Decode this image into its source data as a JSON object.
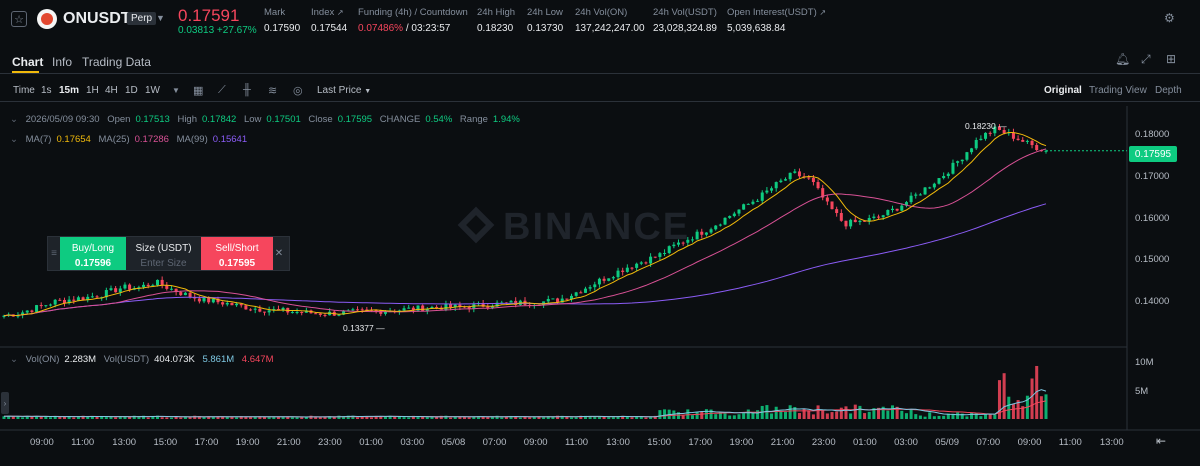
{
  "header": {
    "symbol": "ONUSDT",
    "contract_type": "Perp",
    "last_price": "0.17591",
    "change": "0.03813 +27.67%",
    "stats": [
      {
        "label": "Mark",
        "value": "0.17590",
        "color": ""
      },
      {
        "label": "Index",
        "value": "0.17544",
        "color": ""
      },
      {
        "label": "Funding (4h) / Countdown",
        "value": "0.07486%",
        "value2": "/ 03:23:57",
        "color": "red"
      },
      {
        "label": "24h High",
        "value": "0.18230",
        "color": ""
      },
      {
        "label": "24h Low",
        "value": "0.13730",
        "color": ""
      },
      {
        "label": "24h Vol(ON)",
        "value": "137,242,247.00",
        "color": ""
      },
      {
        "label": "24h Vol(USDT)",
        "value": "23,028,324.89",
        "color": ""
      },
      {
        "label": "Open Interest(USDT)",
        "value": "5,039,638.84",
        "color": ""
      }
    ]
  },
  "tabs": [
    {
      "label": "Chart",
      "active": true
    },
    {
      "label": "Info",
      "active": false
    },
    {
      "label": "Trading Data",
      "active": false
    }
  ],
  "toolbar": {
    "time_label": "Time",
    "intervals": [
      {
        "label": "1s",
        "active": false
      },
      {
        "label": "15m",
        "active": true
      },
      {
        "label": "1H",
        "active": false
      },
      {
        "label": "4H",
        "active": false
      },
      {
        "label": "1D",
        "active": false
      },
      {
        "label": "1W",
        "active": false
      }
    ],
    "price_type": "Last Price",
    "views": [
      {
        "label": "Original",
        "active": true
      },
      {
        "label": "Trading View",
        "active": false
      },
      {
        "label": "Depth",
        "active": false
      }
    ]
  },
  "legend": {
    "ohlc": {
      "date": "2026/05/09 09:30",
      "open_label": "Open",
      "open": "0.17513",
      "high_label": "High",
      "high": "0.17842",
      "low_label": "Low",
      "low": "0.17501",
      "close_label": "Close",
      "close": "0.17595",
      "change_label": "CHANGE",
      "change": "0.54%",
      "range_label": "Range",
      "range": "1.94%"
    },
    "ma": {
      "ma7_label": "MA(7)",
      "ma7": "0.17654",
      "ma25_label": "MA(25)",
      "ma25": "0.17286",
      "ma99_label": "MA(99)",
      "ma99": "0.15641"
    },
    "vol": {
      "vol_on_label": "Vol(ON)",
      "vol_on": "2.283M",
      "vol_usdt_label": "Vol(USDT)",
      "vol_usdt": "404.073K",
      "vol_ma1": "5.861M",
      "vol_ma2": "4.647M"
    }
  },
  "trade_panel": {
    "buy_label": "Buy/Long",
    "buy_price": "0.17596",
    "size_label": "Size (USDT)",
    "size_placeholder": "Enter Size",
    "sell_label": "Sell/Short",
    "sell_price": "0.17595"
  },
  "watermark": "BINANCE",
  "annotations": {
    "high_marker": "0.18230",
    "low_marker": "0.13377"
  },
  "current_price_tag": "0.17595",
  "colors": {
    "up": "#0ecb81",
    "down": "#f6465d",
    "ma7": "#f0b90b",
    "ma25": "#d85195",
    "ma99": "#8b5cf6",
    "accent": "#f0b90b"
  },
  "chart_data": {
    "type": "candlestick",
    "y_ticks": [
      "0.18000",
      "0.17000",
      "0.16000",
      "0.15000",
      "0.14000"
    ],
    "y_tick_values": [
      0.18,
      0.17,
      0.16,
      0.15,
      0.14
    ],
    "ylim": [
      0.1318,
      0.1838
    ],
    "volume_ticks": [
      "10M",
      "5M"
    ],
    "volume_tick_values": [
      10,
      5
    ],
    "x_ticks": [
      "09:00",
      "11:00",
      "13:00",
      "15:00",
      "17:00",
      "19:00",
      "21:00",
      "23:00",
      "01:00",
      "03:00",
      "05/08",
      "07:00",
      "09:00",
      "11:00",
      "13:00",
      "15:00",
      "17:00",
      "19:00",
      "21:00",
      "23:00",
      "01:00",
      "03:00",
      "05/09",
      "07:00",
      "09:00",
      "11:00",
      "13:00"
    ],
    "close_path": [
      0.1365,
      0.1372,
      0.1385,
      0.1398,
      0.1404,
      0.1409,
      0.1418,
      0.1432,
      0.1432,
      0.1445,
      0.1428,
      0.1412,
      0.1402,
      0.1396,
      0.1388,
      0.1382,
      0.1378,
      0.1375,
      0.1372,
      0.137,
      0.1371,
      0.1373,
      0.1376,
      0.1378,
      0.138,
      0.1383,
      0.1386,
      0.1385,
      0.1388,
      0.1392,
      0.1394,
      0.1396,
      0.1398,
      0.1402,
      0.142,
      0.144,
      0.146,
      0.148,
      0.1495,
      0.151,
      0.1535,
      0.1555,
      0.1575,
      0.16,
      0.1625,
      0.165,
      0.168,
      0.1705,
      0.169,
      0.163,
      0.1585,
      0.159,
      0.16,
      0.162,
      0.1645,
      0.1675,
      0.1705,
      0.1745,
      0.179,
      0.1812,
      0.1795,
      0.1775,
      0.176
    ]
  }
}
